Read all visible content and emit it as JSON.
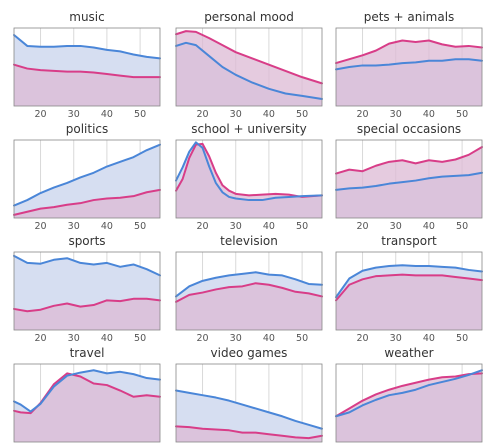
{
  "colors": {
    "blue": "#4a86d8",
    "pink": "#d83d88",
    "blue_fill": "#d6def1",
    "pink_fill": "#dcb9d4",
    "overlap_fill": "#c7b4d9",
    "frame": "#888888",
    "grid": "#d9d9d9"
  },
  "chart_data": [
    {
      "type": "area",
      "title": "music",
      "xlim": [
        12,
        56
      ],
      "ylim": [
        0,
        1
      ],
      "xticks": [
        20,
        30,
        40,
        50
      ],
      "x": [
        12,
        16,
        20,
        24,
        28,
        32,
        36,
        40,
        44,
        48,
        52,
        56
      ],
      "series": [
        {
          "color": "blue",
          "values": [
            0.91,
            0.77,
            0.76,
            0.76,
            0.77,
            0.77,
            0.75,
            0.72,
            0.7,
            0.66,
            0.63,
            0.61
          ]
        },
        {
          "color": "pink",
          "values": [
            0.53,
            0.48,
            0.46,
            0.45,
            0.44,
            0.44,
            0.43,
            0.41,
            0.39,
            0.37,
            0.37,
            0.37
          ]
        }
      ]
    },
    {
      "type": "area",
      "title": "personal mood",
      "xlim": [
        12,
        56
      ],
      "ylim": [
        0,
        1
      ],
      "xticks": [
        20,
        30,
        40,
        50
      ],
      "x": [
        12,
        15,
        18,
        22,
        26,
        30,
        35,
        40,
        45,
        50,
        56
      ],
      "series": [
        {
          "color": "blue",
          "values": [
            0.77,
            0.81,
            0.78,
            0.64,
            0.5,
            0.4,
            0.3,
            0.22,
            0.16,
            0.13,
            0.09
          ]
        },
        {
          "color": "pink",
          "values": [
            0.92,
            0.96,
            0.95,
            0.87,
            0.78,
            0.69,
            0.61,
            0.53,
            0.45,
            0.37,
            0.29
          ]
        }
      ]
    },
    {
      "type": "area",
      "title": "pets + animals",
      "xlim": [
        12,
        56
      ],
      "ylim": [
        0,
        1
      ],
      "xticks": [
        20,
        30,
        40,
        50
      ],
      "x": [
        12,
        16,
        20,
        24,
        28,
        32,
        36,
        40,
        44,
        48,
        52,
        56
      ],
      "series": [
        {
          "color": "blue",
          "values": [
            0.47,
            0.5,
            0.52,
            0.52,
            0.53,
            0.55,
            0.56,
            0.58,
            0.58,
            0.6,
            0.6,
            0.58
          ]
        },
        {
          "color": "pink",
          "values": [
            0.55,
            0.6,
            0.65,
            0.71,
            0.8,
            0.84,
            0.82,
            0.84,
            0.79,
            0.76,
            0.77,
            0.75
          ]
        }
      ]
    },
    {
      "type": "area",
      "title": "politics",
      "xlim": [
        12,
        56
      ],
      "ylim": [
        0,
        1
      ],
      "xticks": [
        20,
        30,
        40,
        50
      ],
      "x": [
        12,
        16,
        20,
        24,
        28,
        32,
        36,
        40,
        44,
        48,
        52,
        56
      ],
      "series": [
        {
          "color": "blue",
          "values": [
            0.16,
            0.23,
            0.32,
            0.39,
            0.45,
            0.52,
            0.58,
            0.66,
            0.72,
            0.78,
            0.87,
            0.94
          ]
        },
        {
          "color": "pink",
          "values": [
            0.04,
            0.08,
            0.12,
            0.14,
            0.17,
            0.19,
            0.23,
            0.25,
            0.26,
            0.28,
            0.33,
            0.36
          ]
        }
      ]
    },
    {
      "type": "area",
      "title": "school + university",
      "xlim": [
        12,
        56
      ],
      "ylim": [
        0,
        1
      ],
      "xticks": [
        20,
        30,
        40,
        50
      ],
      "x": [
        12,
        14,
        16,
        18,
        20,
        22,
        24,
        26,
        28,
        30,
        34,
        38,
        42,
        46,
        50,
        56
      ],
      "series": [
        {
          "color": "blue",
          "values": [
            0.48,
            0.65,
            0.85,
            0.97,
            0.9,
            0.66,
            0.45,
            0.33,
            0.27,
            0.25,
            0.23,
            0.23,
            0.26,
            0.27,
            0.28,
            0.29
          ]
        },
        {
          "color": "pink",
          "values": [
            0.35,
            0.5,
            0.77,
            0.94,
            0.95,
            0.79,
            0.58,
            0.42,
            0.35,
            0.31,
            0.29,
            0.3,
            0.31,
            0.3,
            0.27,
            0.29
          ]
        }
      ]
    },
    {
      "type": "area",
      "title": "special occasions",
      "xlim": [
        12,
        56
      ],
      "ylim": [
        0,
        1
      ],
      "xticks": [
        20,
        30,
        40,
        50
      ],
      "x": [
        12,
        16,
        20,
        24,
        28,
        32,
        36,
        40,
        44,
        48,
        52,
        56
      ],
      "series": [
        {
          "color": "blue",
          "values": [
            0.36,
            0.38,
            0.39,
            0.41,
            0.44,
            0.46,
            0.48,
            0.51,
            0.53,
            0.54,
            0.55,
            0.58
          ]
        },
        {
          "color": "pink",
          "values": [
            0.57,
            0.62,
            0.6,
            0.67,
            0.72,
            0.74,
            0.7,
            0.74,
            0.72,
            0.75,
            0.81,
            0.91
          ]
        }
      ]
    },
    {
      "type": "area",
      "title": "sports",
      "xlim": [
        12,
        56
      ],
      "ylim": [
        0,
        1
      ],
      "xticks": [
        20,
        30,
        40,
        50
      ],
      "x": [
        12,
        16,
        20,
        24,
        28,
        32,
        36,
        40,
        44,
        48,
        52,
        56
      ],
      "series": [
        {
          "color": "blue",
          "values": [
            0.95,
            0.86,
            0.85,
            0.9,
            0.92,
            0.86,
            0.84,
            0.86,
            0.81,
            0.84,
            0.78,
            0.7
          ]
        },
        {
          "color": "pink",
          "values": [
            0.27,
            0.24,
            0.26,
            0.31,
            0.34,
            0.3,
            0.32,
            0.38,
            0.37,
            0.4,
            0.4,
            0.38
          ]
        }
      ]
    },
    {
      "type": "area",
      "title": "television",
      "xlim": [
        12,
        56
      ],
      "ylim": [
        0,
        1
      ],
      "xticks": [
        20,
        30,
        40,
        50
      ],
      "x": [
        12,
        16,
        20,
        24,
        28,
        32,
        36,
        40,
        44,
        48,
        52,
        56
      ],
      "series": [
        {
          "color": "blue",
          "values": [
            0.43,
            0.56,
            0.63,
            0.67,
            0.7,
            0.72,
            0.74,
            0.71,
            0.7,
            0.65,
            0.59,
            0.58
          ]
        },
        {
          "color": "pink",
          "values": [
            0.36,
            0.45,
            0.48,
            0.52,
            0.55,
            0.56,
            0.6,
            0.58,
            0.54,
            0.49,
            0.47,
            0.43
          ]
        }
      ]
    },
    {
      "type": "area",
      "title": "transport",
      "xlim": [
        12,
        56
      ],
      "ylim": [
        0,
        1
      ],
      "xticks": [
        20,
        30,
        40,
        50
      ],
      "x": [
        12,
        16,
        20,
        24,
        28,
        32,
        36,
        40,
        44,
        48,
        52,
        56
      ],
      "series": [
        {
          "color": "blue",
          "values": [
            0.42,
            0.66,
            0.76,
            0.8,
            0.82,
            0.83,
            0.82,
            0.82,
            0.81,
            0.8,
            0.77,
            0.75
          ]
        },
        {
          "color": "pink",
          "values": [
            0.38,
            0.58,
            0.65,
            0.69,
            0.7,
            0.71,
            0.7,
            0.7,
            0.7,
            0.68,
            0.66,
            0.64
          ]
        }
      ]
    },
    {
      "type": "area",
      "title": "travel",
      "xlim": [
        12,
        56
      ],
      "ylim": [
        0,
        1
      ],
      "xticks": [
        20,
        30,
        40,
        50
      ],
      "x": [
        12,
        14,
        17,
        20,
        24,
        28,
        32,
        36,
        40,
        44,
        48,
        52,
        56
      ],
      "series": [
        {
          "color": "blue",
          "values": [
            0.52,
            0.48,
            0.39,
            0.49,
            0.71,
            0.85,
            0.89,
            0.92,
            0.88,
            0.9,
            0.87,
            0.82,
            0.8
          ]
        },
        {
          "color": "pink",
          "values": [
            0.4,
            0.38,
            0.37,
            0.5,
            0.74,
            0.88,
            0.84,
            0.75,
            0.73,
            0.66,
            0.58,
            0.6,
            0.58
          ]
        }
      ]
    },
    {
      "type": "area",
      "title": "video games",
      "xlim": [
        12,
        56
      ],
      "ylim": [
        0,
        1
      ],
      "xticks": [
        20,
        30,
        40,
        50
      ],
      "x": [
        12,
        16,
        20,
        24,
        28,
        32,
        36,
        40,
        44,
        48,
        52,
        56
      ],
      "series": [
        {
          "color": "blue",
          "values": [
            0.66,
            0.63,
            0.6,
            0.57,
            0.53,
            0.48,
            0.43,
            0.38,
            0.33,
            0.27,
            0.22,
            0.17
          ]
        },
        {
          "color": "pink",
          "values": [
            0.2,
            0.19,
            0.17,
            0.16,
            0.15,
            0.12,
            0.12,
            0.1,
            0.08,
            0.06,
            0.05,
            0.08
          ]
        }
      ]
    },
    {
      "type": "area",
      "title": "weather",
      "xlim": [
        12,
        56
      ],
      "ylim": [
        0,
        1
      ],
      "xticks": [
        20,
        30,
        40,
        50
      ],
      "x": [
        12,
        16,
        20,
        24,
        28,
        32,
        36,
        40,
        44,
        48,
        52,
        56
      ],
      "series": [
        {
          "color": "blue",
          "values": [
            0.33,
            0.38,
            0.47,
            0.54,
            0.6,
            0.63,
            0.67,
            0.73,
            0.77,
            0.81,
            0.86,
            0.92
          ]
        },
        {
          "color": "pink",
          "values": [
            0.33,
            0.43,
            0.53,
            0.61,
            0.67,
            0.72,
            0.76,
            0.8,
            0.83,
            0.84,
            0.87,
            0.88
          ]
        }
      ]
    }
  ]
}
